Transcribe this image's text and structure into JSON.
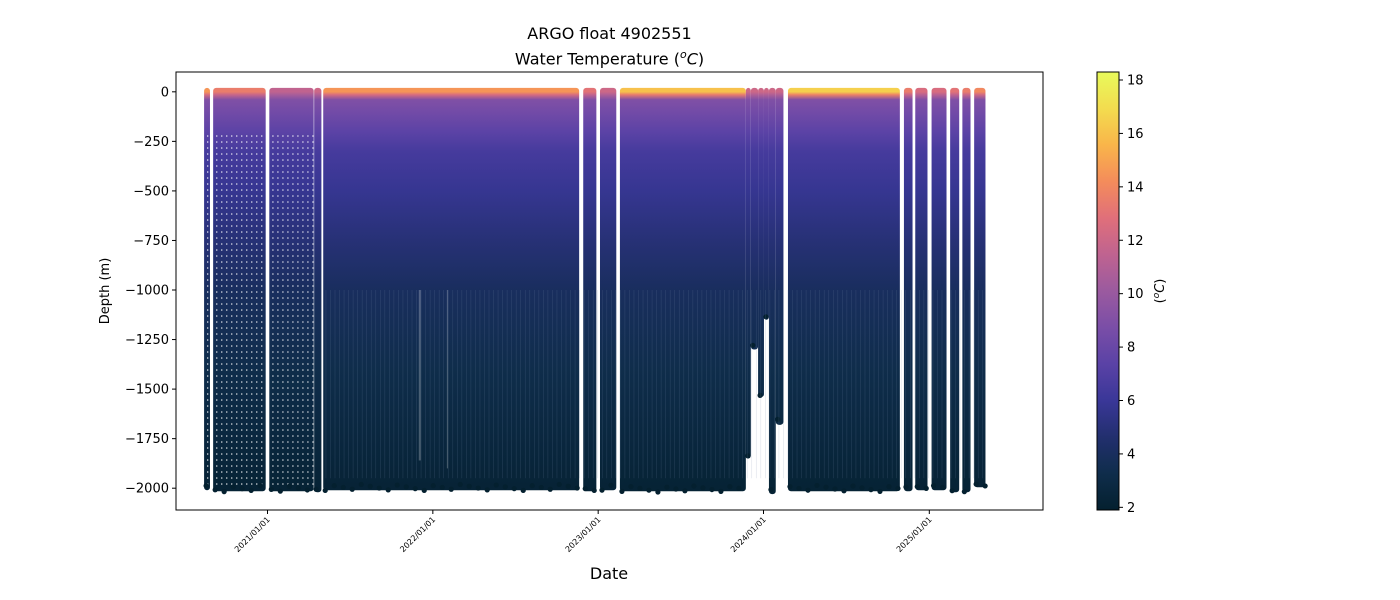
{
  "chart_data": {
    "type": "scatter",
    "title": "ARGO float 4902551",
    "subtitle_prefix": "Water Temperature (",
    "subtitle_unit_sup": "o",
    "subtitle_unit": "C",
    "subtitle_suffix": ")",
    "xlabel": "Date",
    "ylabel": "Depth (m)",
    "ylim": [
      -2110,
      100
    ],
    "xlim": [
      "2020-06-13",
      "2025-09-09"
    ],
    "yticks": [
      0,
      -250,
      -500,
      -750,
      -1000,
      -1250,
      -1500,
      -1750,
      -2000
    ],
    "ytick_labels": [
      "0",
      "−250",
      "−500",
      "−750",
      "−1000",
      "−1250",
      "−1500",
      "−1750",
      "−2000"
    ],
    "xticks": [
      "2021-01-01",
      "2022-01-01",
      "2023-01-01",
      "2024-01-01",
      "2025-01-01"
    ],
    "xtick_labels": [
      "2021/01/01",
      "2022/01/01",
      "2023/01/01",
      "2024/01/01",
      "2025/01/01"
    ],
    "colorbar": {
      "label_prefix": "(",
      "label_sup": "o",
      "label_unit": "C",
      "label_suffix": ")",
      "vmin": 1.9,
      "vmax": 18.3,
      "ticks": [
        2,
        4,
        6,
        8,
        10,
        12,
        14,
        16,
        18
      ],
      "tick_labels": [
        "2",
        "4",
        "6",
        "8",
        "10",
        "12",
        "14",
        "16",
        "18"
      ],
      "colormap": "thermal",
      "colors": [
        "#04202f",
        "#0f2d4b",
        "#222f6e",
        "#3a3798",
        "#5a42a6",
        "#7a4ea7",
        "#9b5a9f",
        "#bf6390",
        "#e06f7a",
        "#f48c5b",
        "#f9b54a",
        "#f3dc4f",
        "#e8fa5b"
      ]
    },
    "grid": false,
    "legend": "none",
    "profile_segments": [
      {
        "start": "2020-08-14",
        "end": "2020-08-27",
        "max_depth": -1990,
        "surface_temp": 14.5,
        "dotted": true
      },
      {
        "start": "2020-09-03",
        "end": "2020-12-28",
        "max_depth": -1995,
        "surface_temp": 13.5,
        "dotted": true
      },
      {
        "start": "2021-01-05",
        "end": "2021-04-13",
        "max_depth": -1995,
        "surface_temp": 11.5,
        "dotted": true
      },
      {
        "start": "2021-04-14",
        "end": "2021-04-30",
        "max_depth": -2000,
        "surface_temp": 12.0,
        "dotted": false
      },
      {
        "start": "2021-05-04",
        "end": "2022-11-20",
        "max_depth": -1990,
        "surface_temp": 14.5,
        "dotted": false
      },
      {
        "start": "2022-11-29",
        "end": "2022-12-28",
        "max_depth": -1995,
        "surface_temp": 13.0,
        "dotted": false
      },
      {
        "start": "2023-01-05",
        "end": "2023-02-10",
        "max_depth": -1990,
        "surface_temp": 12.0,
        "dotted": false
      },
      {
        "start": "2023-02-18",
        "end": "2023-11-23",
        "max_depth": -1995,
        "surface_temp": 16.0,
        "dotted": false
      },
      {
        "start": "2023-11-23",
        "end": "2023-12-04",
        "max_depth": -1830,
        "surface_temp": 12.0,
        "dotted": false
      },
      {
        "start": "2023-12-04",
        "end": "2023-12-20",
        "max_depth": -1280,
        "surface_temp": 12.0,
        "dotted": false
      },
      {
        "start": "2023-12-20",
        "end": "2024-01-02",
        "max_depth": -1520,
        "surface_temp": 12.0,
        "dotted": false
      },
      {
        "start": "2024-01-02",
        "end": "2024-01-13",
        "max_depth": -1130,
        "surface_temp": 12.0,
        "dotted": false
      },
      {
        "start": "2024-01-13",
        "end": "2024-01-28",
        "max_depth": -2010,
        "surface_temp": 12.0,
        "dotted": false
      },
      {
        "start": "2024-01-28",
        "end": "2024-02-14",
        "max_depth": -1660,
        "surface_temp": 12.0,
        "dotted": false
      },
      {
        "start": "2024-02-24",
        "end": "2024-10-28",
        "max_depth": -1995,
        "surface_temp": 16.5,
        "dotted": false
      },
      {
        "start": "2024-11-06",
        "end": "2024-11-25",
        "max_depth": -1995,
        "surface_temp": 13.5,
        "dotted": false
      },
      {
        "start": "2024-12-01",
        "end": "2024-12-28",
        "max_depth": -1990,
        "surface_temp": 12.5,
        "dotted": false
      },
      {
        "start": "2025-01-06",
        "end": "2025-02-08",
        "max_depth": -1990,
        "surface_temp": 12.5,
        "dotted": false
      },
      {
        "start": "2025-02-16",
        "end": "2025-03-08",
        "max_depth": -2000,
        "surface_temp": 13.0,
        "dotted": false
      },
      {
        "start": "2025-03-15",
        "end": "2025-04-02",
        "max_depth": -2000,
        "surface_temp": 13.5,
        "dotted": false
      },
      {
        "start": "2025-04-10",
        "end": "2025-05-05",
        "max_depth": -1975,
        "surface_temp": 14.0,
        "dotted": false
      }
    ],
    "gaps_in_deep_layer": [
      {
        "start": "2021-12-01",
        "end": "2022-01-15",
        "from_depth": -1000,
        "to_depth": -1860
      },
      {
        "start": "2022-02-01",
        "end": "2022-02-25",
        "from_depth": -1000,
        "to_depth": -1900
      }
    ]
  }
}
